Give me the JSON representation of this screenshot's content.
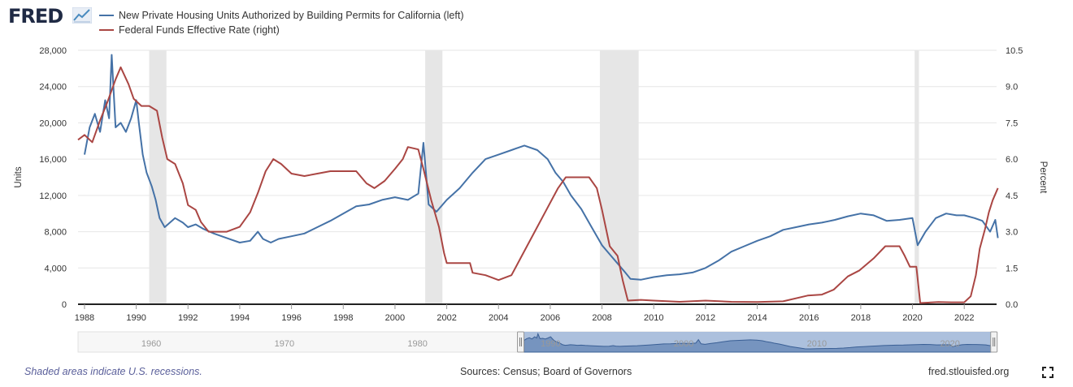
{
  "header": {
    "logo_text": "FRED",
    "logo_icon": "line-chart-icon"
  },
  "legend": [
    {
      "label": "New Private Housing Units Authorized by Building Permits for California (left)",
      "color": "#4572a7"
    },
    {
      "label": "Federal Funds Effective Rate (right)",
      "color": "#aa4643"
    }
  ],
  "footer": {
    "recession_note": "Shaded areas indicate U.S. recessions.",
    "sources": "Sources: Census; Board of Governors",
    "site": "fred.stlouisfed.org",
    "fullscreen_icon": "fullscreen-icon"
  },
  "chart_data": {
    "type": "line",
    "x_range": [
      "1987-10-01",
      "2023-04-01"
    ],
    "x_ticks": [
      "1988",
      "1990",
      "1992",
      "1994",
      "1996",
      "1998",
      "2000",
      "2002",
      "2004",
      "2006",
      "2008",
      "2010",
      "2012",
      "2014",
      "2016",
      "2018",
      "2020",
      "2022"
    ],
    "ylabel_left": "Units",
    "ylabel_right": "Percent",
    "ylim_left": [
      0,
      28000
    ],
    "ylim_right": [
      0,
      10.5
    ],
    "y_ticks_left": [
      "0",
      "4,000",
      "8,000",
      "12,000",
      "16,000",
      "20,000",
      "24,000",
      "28,000"
    ],
    "y_ticks_right": [
      "0.0",
      "1.5",
      "3.0",
      "4.5",
      "6.0",
      "7.5",
      "9.0",
      "10.5"
    ],
    "grid": "horizontal",
    "recessions": [
      [
        "1990-07-01",
        "1991-03-01"
      ],
      [
        "2001-03-01",
        "2001-11-01"
      ],
      [
        "2007-12-01",
        "2009-06-01"
      ],
      [
        "2020-02-01",
        "2020-04-01"
      ]
    ],
    "series": [
      {
        "name": "New Private Housing Units Authorized by Building Permits for California (left)",
        "axis": "left",
        "color": "#4572a7",
        "points": [
          [
            1988.0,
            16500
          ],
          [
            1988.2,
            19500
          ],
          [
            1988.4,
            21000
          ],
          [
            1988.6,
            19000
          ],
          [
            1988.8,
            22500
          ],
          [
            1988.95,
            20500
          ],
          [
            1989.05,
            27500
          ],
          [
            1989.2,
            19500
          ],
          [
            1989.4,
            20000
          ],
          [
            1989.6,
            19000
          ],
          [
            1989.8,
            20500
          ],
          [
            1990.0,
            22500
          ],
          [
            1990.1,
            20000
          ],
          [
            1990.25,
            16500
          ],
          [
            1990.4,
            14500
          ],
          [
            1990.6,
            13000
          ],
          [
            1990.75,
            11500
          ],
          [
            1990.9,
            9500
          ],
          [
            1991.1,
            8500
          ],
          [
            1991.3,
            9000
          ],
          [
            1991.5,
            9500
          ],
          [
            1991.8,
            9000
          ],
          [
            1992.0,
            8500
          ],
          [
            1992.3,
            8800
          ],
          [
            1992.6,
            8300
          ],
          [
            1993.0,
            7800
          ],
          [
            1993.5,
            7300
          ],
          [
            1994.0,
            6800
          ],
          [
            1994.4,
            7000
          ],
          [
            1994.7,
            8000
          ],
          [
            1994.9,
            7200
          ],
          [
            1995.2,
            6800
          ],
          [
            1995.5,
            7200
          ],
          [
            1996.0,
            7500
          ],
          [
            1996.5,
            7800
          ],
          [
            1997.0,
            8500
          ],
          [
            1997.5,
            9200
          ],
          [
            1998.0,
            10000
          ],
          [
            1998.5,
            10800
          ],
          [
            1999.0,
            11000
          ],
          [
            1999.5,
            11500
          ],
          [
            2000.0,
            11800
          ],
          [
            2000.5,
            11500
          ],
          [
            2000.9,
            12200
          ],
          [
            2001.1,
            17800
          ],
          [
            2001.3,
            11000
          ],
          [
            2001.6,
            10200
          ],
          [
            2002.0,
            11500
          ],
          [
            2002.5,
            12800
          ],
          [
            2003.0,
            14500
          ],
          [
            2003.5,
            16000
          ],
          [
            2004.0,
            16500
          ],
          [
            2004.5,
            17000
          ],
          [
            2005.0,
            17500
          ],
          [
            2005.5,
            17000
          ],
          [
            2005.9,
            16000
          ],
          [
            2006.2,
            14500
          ],
          [
            2006.5,
            13500
          ],
          [
            2006.8,
            12000
          ],
          [
            2007.2,
            10500
          ],
          [
            2007.6,
            8500
          ],
          [
            2008.0,
            6500
          ],
          [
            2008.3,
            5500
          ],
          [
            2008.6,
            4500
          ],
          [
            2008.9,
            3500
          ],
          [
            2009.1,
            2800
          ],
          [
            2009.5,
            2700
          ],
          [
            2010.0,
            3000
          ],
          [
            2010.5,
            3200
          ],
          [
            2011.0,
            3300
          ],
          [
            2011.5,
            3500
          ],
          [
            2012.0,
            4000
          ],
          [
            2012.5,
            4800
          ],
          [
            2013.0,
            5800
          ],
          [
            2013.5,
            6400
          ],
          [
            2014.0,
            7000
          ],
          [
            2014.5,
            7500
          ],
          [
            2015.0,
            8200
          ],
          [
            2015.5,
            8500
          ],
          [
            2016.0,
            8800
          ],
          [
            2016.5,
            9000
          ],
          [
            2017.0,
            9300
          ],
          [
            2017.5,
            9700
          ],
          [
            2018.0,
            10000
          ],
          [
            2018.5,
            9800
          ],
          [
            2019.0,
            9200
          ],
          [
            2019.5,
            9300
          ],
          [
            2020.0,
            9500
          ],
          [
            2020.2,
            6500
          ],
          [
            2020.5,
            8000
          ],
          [
            2020.9,
            9500
          ],
          [
            2021.3,
            10000
          ],
          [
            2021.7,
            9800
          ],
          [
            2022.0,
            9800
          ],
          [
            2022.4,
            9500
          ],
          [
            2022.7,
            9200
          ],
          [
            2023.0,
            8000
          ],
          [
            2023.2,
            9300
          ],
          [
            2023.3,
            7300
          ]
        ]
      },
      {
        "name": "Federal Funds Effective Rate (right)",
        "axis": "right",
        "color": "#aa4643",
        "points": [
          [
            1987.75,
            6.8
          ],
          [
            1988.0,
            7.0
          ],
          [
            1988.3,
            6.7
          ],
          [
            1988.6,
            7.6
          ],
          [
            1988.9,
            8.4
          ],
          [
            1989.2,
            9.3
          ],
          [
            1989.4,
            9.8
          ],
          [
            1989.7,
            9.1
          ],
          [
            1989.9,
            8.5
          ],
          [
            1990.2,
            8.2
          ],
          [
            1990.5,
            8.2
          ],
          [
            1990.8,
            8.0
          ],
          [
            1991.0,
            6.9
          ],
          [
            1991.2,
            6.0
          ],
          [
            1991.5,
            5.8
          ],
          [
            1991.8,
            5.0
          ],
          [
            1992.0,
            4.1
          ],
          [
            1992.3,
            3.9
          ],
          [
            1992.5,
            3.4
          ],
          [
            1992.8,
            3.0
          ],
          [
            1993.0,
            3.0
          ],
          [
            1993.5,
            3.0
          ],
          [
            1994.0,
            3.2
          ],
          [
            1994.4,
            3.8
          ],
          [
            1994.7,
            4.6
          ],
          [
            1995.0,
            5.5
          ],
          [
            1995.3,
            6.0
          ],
          [
            1995.6,
            5.8
          ],
          [
            1996.0,
            5.4
          ],
          [
            1996.5,
            5.3
          ],
          [
            1997.0,
            5.4
          ],
          [
            1997.5,
            5.5
          ],
          [
            1998.0,
            5.5
          ],
          [
            1998.5,
            5.5
          ],
          [
            1998.9,
            5.0
          ],
          [
            1999.2,
            4.8
          ],
          [
            1999.6,
            5.1
          ],
          [
            2000.0,
            5.6
          ],
          [
            2000.3,
            6.0
          ],
          [
            2000.5,
            6.5
          ],
          [
            2000.9,
            6.4
          ],
          [
            2001.1,
            5.6
          ],
          [
            2001.4,
            4.3
          ],
          [
            2001.7,
            3.2
          ],
          [
            2001.9,
            2.1
          ],
          [
            2002.0,
            1.7
          ],
          [
            2002.5,
            1.7
          ],
          [
            2002.9,
            1.7
          ],
          [
            2003.0,
            1.3
          ],
          [
            2003.5,
            1.2
          ],
          [
            2004.0,
            1.0
          ],
          [
            2004.5,
            1.2
          ],
          [
            2004.9,
            2.0
          ],
          [
            2005.4,
            3.0
          ],
          [
            2005.9,
            4.0
          ],
          [
            2006.3,
            4.8
          ],
          [
            2006.6,
            5.25
          ],
          [
            2007.0,
            5.25
          ],
          [
            2007.5,
            5.25
          ],
          [
            2007.8,
            4.8
          ],
          [
            2008.0,
            3.9
          ],
          [
            2008.3,
            2.4
          ],
          [
            2008.6,
            2.0
          ],
          [
            2008.8,
            1.0
          ],
          [
            2009.0,
            0.15
          ],
          [
            2009.5,
            0.18
          ],
          [
            2010.0,
            0.15
          ],
          [
            2011.0,
            0.1
          ],
          [
            2012.0,
            0.15
          ],
          [
            2013.0,
            0.1
          ],
          [
            2014.0,
            0.09
          ],
          [
            2015.0,
            0.12
          ],
          [
            2015.95,
            0.36
          ],
          [
            2016.5,
            0.4
          ],
          [
            2016.95,
            0.6
          ],
          [
            2017.5,
            1.15
          ],
          [
            2017.95,
            1.4
          ],
          [
            2018.5,
            1.9
          ],
          [
            2018.95,
            2.4
          ],
          [
            2019.5,
            2.4
          ],
          [
            2019.7,
            2.0
          ],
          [
            2019.9,
            1.55
          ],
          [
            2020.15,
            1.55
          ],
          [
            2020.3,
            0.05
          ],
          [
            2021.0,
            0.09
          ],
          [
            2021.5,
            0.08
          ],
          [
            2022.0,
            0.08
          ],
          [
            2022.25,
            0.33
          ],
          [
            2022.45,
            1.2
          ],
          [
            2022.6,
            2.3
          ],
          [
            2022.8,
            3.1
          ],
          [
            2022.95,
            3.8
          ],
          [
            2023.1,
            4.3
          ],
          [
            2023.3,
            4.8
          ]
        ]
      }
    ]
  },
  "navigator": {
    "ticks": [
      "1960",
      "1970",
      "1980",
      "1990",
      "2000",
      "2010",
      "2020"
    ],
    "range_start": 1987.75,
    "range_end": 2023.3,
    "full_start": 1954.5,
    "full_end": 2023.5
  }
}
